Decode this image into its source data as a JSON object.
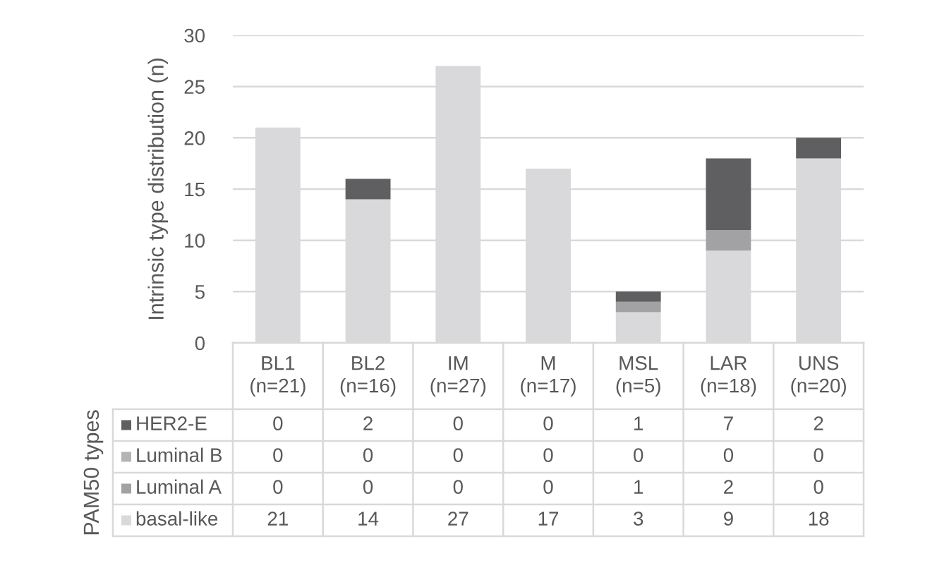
{
  "chart_data": {
    "type": "bar",
    "stacked": true,
    "categories": [
      "BL1\n(n=21)",
      "BL2\n(n=16)",
      "IM\n(n=27)",
      "M\n(n=17)",
      "MSL\n(n=5)",
      "LAR\n(n=18)",
      "UNS\n(n=20)"
    ],
    "series": [
      {
        "name": "basal-like",
        "color": "#d9d9db",
        "values": [
          21,
          14,
          27,
          17,
          3,
          9,
          18
        ]
      },
      {
        "name": "Luminal A",
        "color": "#a2a2a4",
        "values": [
          0,
          0,
          0,
          0,
          1,
          2,
          0
        ]
      },
      {
        "name": "Luminal B",
        "color": "#b4b4b6",
        "values": [
          0,
          0,
          0,
          0,
          0,
          0,
          0
        ]
      },
      {
        "name": "HER2-E",
        "color": "#5f5f61",
        "values": [
          0,
          2,
          0,
          0,
          1,
          7,
          2
        ]
      }
    ],
    "ylabel": "Intrinsic type distribution (n)",
    "legend_title": "PAM50 types",
    "ylim": [
      0,
      30
    ],
    "yticks": [
      0,
      5,
      10,
      15,
      20,
      25,
      30
    ],
    "grid": "y",
    "legend": "bottom",
    "data_labels": true
  }
}
